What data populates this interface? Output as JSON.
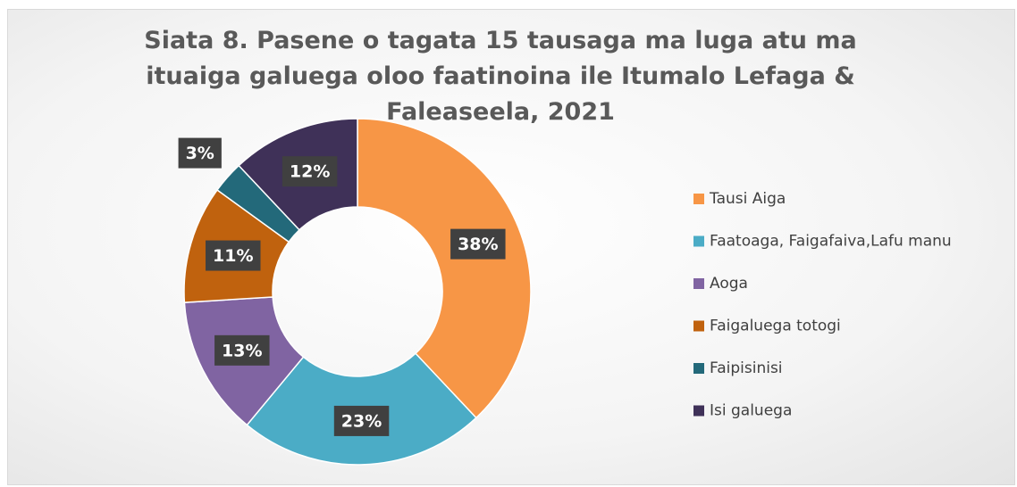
{
  "chart_data": {
    "type": "donut",
    "title": "Siata 8. Pasene o tagata 15 tausaga ma luga atu ma ituaiga galuega oloo faatinoina ile Itumalo Lefaga & Faleaseela, 2021",
    "categories": [
      "Tausi Aiga",
      "Faatoaga, Faigafaiva,Lafu manu",
      "Aoga",
      "Faigaluega totogi",
      "Faipisinisi",
      "Isi galuega"
    ],
    "values": [
      38,
      23,
      13,
      11,
      3,
      12
    ],
    "value_labels": [
      "38%",
      "23%",
      "13%",
      "11%",
      "3%",
      "12%"
    ],
    "colors": [
      "#f79646",
      "#4bacc6",
      "#8064a2",
      "#c0620e",
      "#23697a",
      "#3f3158"
    ],
    "legend": "right"
  }
}
